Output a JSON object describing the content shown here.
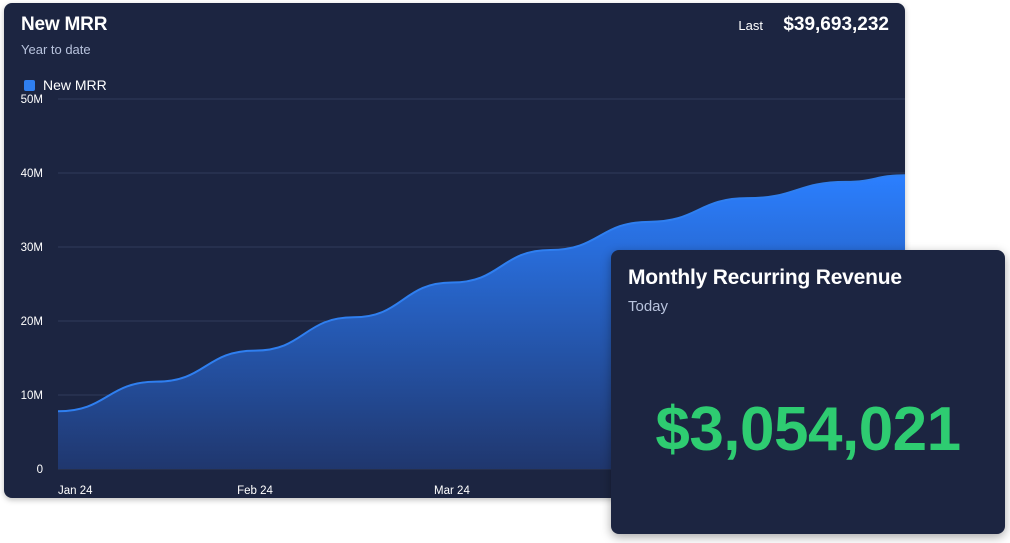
{
  "chart_card": {
    "title": "New MRR",
    "subtitle": "Year to date",
    "last_label": "Last",
    "last_value": "$39,693,232"
  },
  "kpi_card": {
    "title": "Monthly Recurring Revenue",
    "subtitle": "Today",
    "value": "$3,054,021",
    "value_color": "#2ecc71"
  },
  "colors": {
    "panel_bg": "#1c2541",
    "series_line": "#2f7ff0",
    "series_fill_top": "#2b7fff",
    "series_fill_bottom": "#20376e",
    "gridline": "#2f3a5c",
    "subtitle": "#b8c3dd"
  },
  "chart_data": {
    "type": "area",
    "x_ticks": [
      "Jan 24",
      "Feb 24",
      "Mar 24"
    ],
    "y_ticks": [
      "0",
      "10M",
      "20M",
      "30M",
      "40M",
      "50M"
    ],
    "ylim": [
      0,
      50000000
    ],
    "xlim": [
      0,
      4.3
    ],
    "grid": true,
    "legend": "top-left",
    "series": [
      {
        "name": "New MRR",
        "color": "#2f7ff0",
        "points": [
          {
            "x": 0,
            "y": 7800000
          },
          {
            "x": 0.5,
            "y": 11800000
          },
          {
            "x": 1,
            "y": 16000000
          },
          {
            "x": 1.5,
            "y": 20500000
          },
          {
            "x": 2,
            "y": 25200000
          },
          {
            "x": 2.5,
            "y": 29600000
          },
          {
            "x": 3,
            "y": 33400000
          },
          {
            "x": 3.5,
            "y": 36600000
          },
          {
            "x": 4,
            "y": 38800000
          },
          {
            "x": 4.3,
            "y": 39693232
          }
        ]
      }
    ]
  }
}
